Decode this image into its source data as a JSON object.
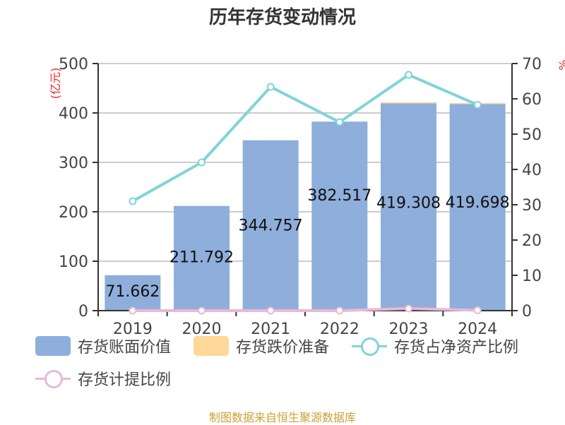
{
  "title": "历年存货变动情况",
  "source": "制图数据来自恒生聚源数据库",
  "left_axis": {
    "label": "(亿元)",
    "ticks": [
      "0",
      "100",
      "200",
      "300",
      "400",
      "500"
    ],
    "color": "#e8282b"
  },
  "right_axis": {
    "label": "%",
    "ticks": [
      "0",
      "10",
      "20",
      "30",
      "40",
      "50",
      "60",
      "70"
    ],
    "color": "#e8282b"
  },
  "colors": {
    "bar_main": "#8eaedb",
    "bar_reserve": "#fdd898",
    "line_ratio": "#80d4d6",
    "line_provision": "#e8b8d8"
  },
  "legend": [
    {
      "label": "存货账面价值",
      "type": "bar",
      "color": "#8eaedb"
    },
    {
      "label": "存货跌价准备",
      "type": "bar",
      "color": "#fdd898"
    },
    {
      "label": "存货占净资产比例",
      "type": "line",
      "color": "#80d4d6"
    },
    {
      "label": "存货计提比例",
      "type": "line",
      "color": "#e8b8d8"
    }
  ],
  "chart_data": {
    "type": "bar",
    "title": "历年存货变动情况",
    "xlabel": "",
    "ylabel": "(亿元)",
    "y2label": "%",
    "categories": [
      "2019",
      "2020",
      "2021",
      "2022",
      "2023",
      "2024"
    ],
    "ylim": [
      0,
      500
    ],
    "y2lim": [
      0,
      70
    ],
    "grid": true,
    "legend_position": "bottom",
    "series": [
      {
        "name": "存货账面价值",
        "type": "bar",
        "axis": "left",
        "stack": "inv",
        "values": [
          71.662,
          211.792,
          344.757,
          382.517,
          419.308,
          419.698
        ],
        "labels": [
          "71.662",
          "211.792",
          "344.757",
          "382.517",
          "419.308",
          "419.698"
        ]
      },
      {
        "name": "存货跌价准备",
        "type": "bar",
        "axis": "left",
        "stack": "inv",
        "values": [
          0,
          0,
          0,
          0,
          2.5,
          0.3
        ]
      },
      {
        "name": "存货占净资产比例",
        "type": "line",
        "axis": "right",
        "values": [
          31.0,
          42.0,
          63.4,
          53.4,
          66.8,
          58.3
        ]
      },
      {
        "name": "存货计提比例",
        "type": "line",
        "axis": "right",
        "values": [
          0.0,
          0.0,
          0.0,
          0.0,
          0.6,
          0.1
        ]
      }
    ]
  }
}
